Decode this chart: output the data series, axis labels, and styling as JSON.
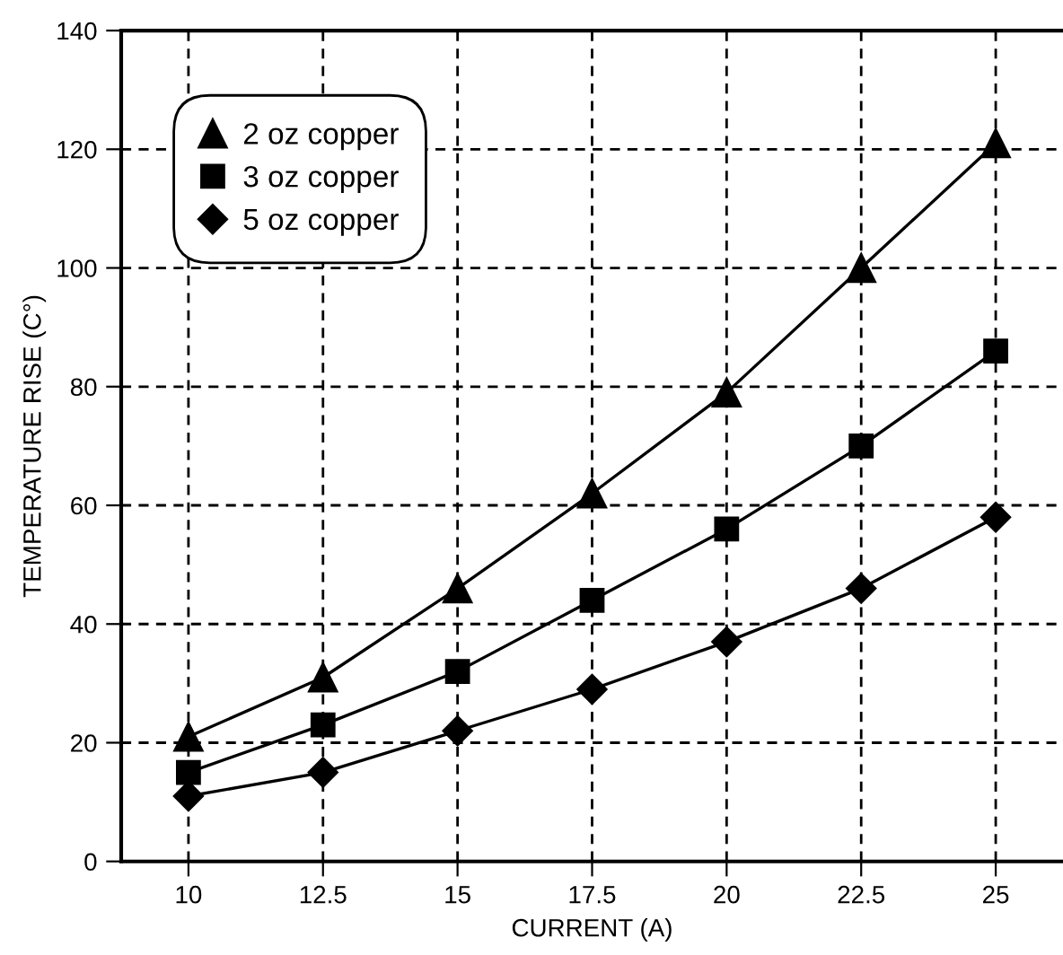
{
  "chart_data": {
    "type": "line",
    "xlabel": "CURRENT (A)",
    "ylabel": "TEMPERATURE RISE (C°)",
    "x": [
      10,
      12.5,
      15,
      17.5,
      20,
      22.5,
      25
    ],
    "series": [
      {
        "name": "2 oz copper",
        "color": "#000000",
        "marker": "triangle",
        "values": [
          21,
          31,
          46,
          62,
          79,
          100,
          121
        ]
      },
      {
        "name": "3 oz copper",
        "color": "#000000",
        "marker": "square",
        "values": [
          15,
          23,
          32,
          44,
          56,
          70,
          86
        ]
      },
      {
        "name": "5 oz copper",
        "color": "#000000",
        "marker": "diamond",
        "values": [
          11,
          15,
          22,
          29,
          37,
          46,
          58
        ]
      }
    ],
    "xlim": [
      8.75,
      26.25
    ],
    "xticks": [
      10,
      12.5,
      15,
      17.5,
      20,
      22.5,
      25
    ],
    "ylim": [
      0,
      140
    ],
    "yticks": [
      0,
      20,
      40,
      60,
      80,
      100,
      120,
      140
    ],
    "grid": true,
    "legend": "top left",
    "line_style": "solid"
  }
}
